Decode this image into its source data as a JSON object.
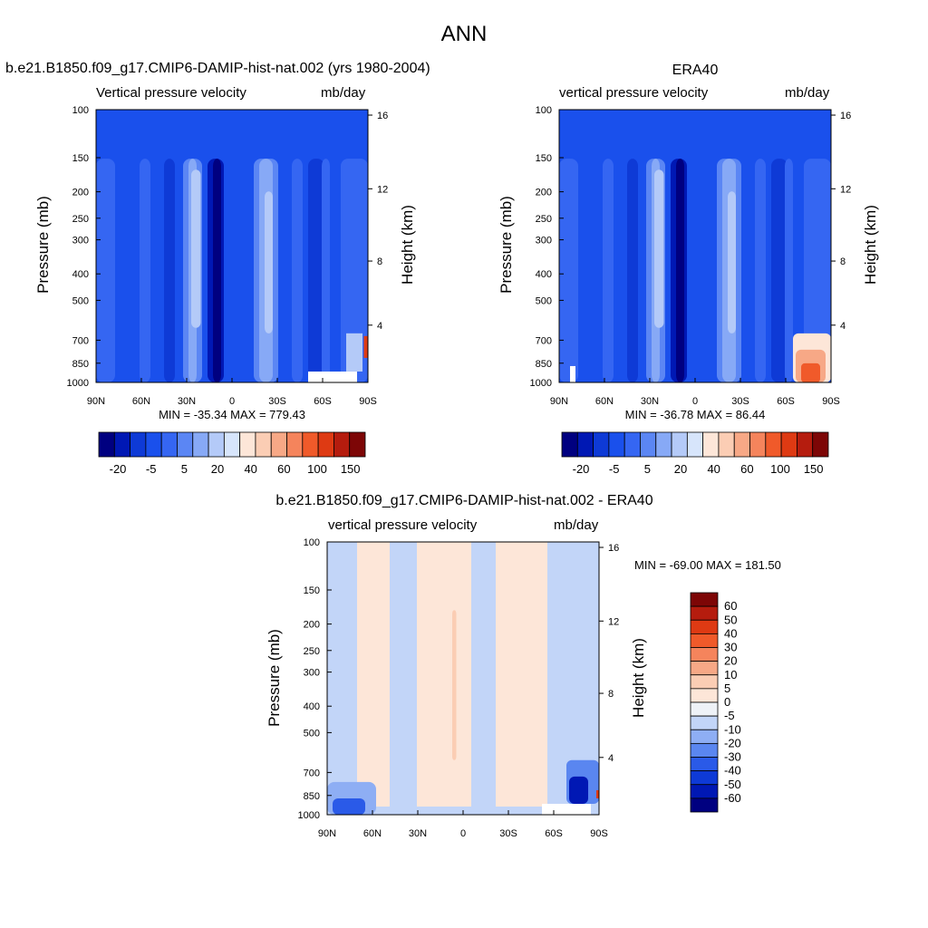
{
  "main_title": "ANN",
  "colors": {
    "blue_scale": [
      "#000080",
      "#0018b4",
      "#0e3ad6",
      "#1a50ec",
      "#3566f2",
      "#5b86f4",
      "#87a9f6",
      "#b4caf8",
      "#d7e5fb"
    ],
    "red_scale": [
      "#fde6d8",
      "#fbcdb4",
      "#f7a886",
      "#f5845c",
      "#f05a2a",
      "#de3a13",
      "#b51c0e",
      "#7d0606"
    ],
    "neutral": "#eef2f7",
    "diff_scale": [
      "#000080",
      "#0018b4",
      "#0e3ad6",
      "#2a5ae8",
      "#5a86f0",
      "#8eaef4",
      "#c2d5f8",
      "#eef2f7",
      "#fde6d8",
      "#fbcdb4",
      "#f7a886",
      "#f5845c",
      "#f05a2a",
      "#de3a13",
      "#b51c0e",
      "#7d0606"
    ]
  },
  "panels": [
    {
      "title": "b.e21.B1850.f09_g17.CMIP6-DAMIP-hist-nat.002 (yrs 1980-2004)",
      "left_label": "Vertical pressure velocity",
      "right_label": "mb/day",
      "min_max": "MIN = -35.34  MAX = 779.43"
    },
    {
      "title": "ERA40",
      "left_label": "vertical pressure velocity",
      "right_label": "mb/day",
      "min_max": "MIN = -36.78  MAX =  86.44"
    },
    {
      "title": "b.e21.B1850.f09_g17.CMIP6-DAMIP-hist-nat.002 - ERA40",
      "left_label": "vertical pressure velocity",
      "right_label": "mb/day",
      "min_max": "MIN = -69.00  MAX = 181.50"
    }
  ],
  "axes": {
    "ylabel": "Pressure (mb)",
    "ylabel_right": "Height (km)",
    "pressure_ticks": [
      "100",
      "150",
      "200",
      "250",
      "300",
      "400",
      "500",
      "700",
      "850",
      "1000"
    ],
    "height_ticks": [
      "16",
      "12",
      "8",
      "4"
    ],
    "lat_ticks": [
      "90N",
      "60N",
      "30N",
      "0",
      "30S",
      "60S",
      "90S"
    ]
  },
  "colorbar_labels": [
    "-20",
    "-5",
    "5",
    "20",
    "40",
    "60",
    "100",
    "150"
  ],
  "diff_colorbar_labels": [
    "60",
    "50",
    "40",
    "30",
    "20",
    "10",
    "5",
    "0",
    "-5",
    "-10",
    "-20",
    "-30",
    "-40",
    "-50",
    "-60"
  ],
  "chart_data": [
    {
      "type": "heatmap",
      "title": "b.e21.B1850.f09_g17.CMIP6-DAMIP-hist-nat.002 (yrs 1980-2004)",
      "xlabel": "",
      "ylabel": "Pressure (mb)",
      "ylabel_right": "Height (km)",
      "x_ticks": [
        "90N",
        "60N",
        "30N",
        "0",
        "30S",
        "60S",
        "90S"
      ],
      "y_ticks": [
        100,
        150,
        200,
        250,
        300,
        400,
        500,
        700,
        850,
        1000
      ],
      "y_scale": "log",
      "y_reversed": true,
      "units": "mb/day",
      "min": -35.34,
      "max": 779.43,
      "levels": [
        -20,
        -5,
        5,
        20,
        40,
        60,
        100,
        150
      ]
    },
    {
      "type": "heatmap",
      "title": "ERA40",
      "xlabel": "",
      "ylabel": "Pressure (mb)",
      "ylabel_right": "Height (km)",
      "x_ticks": [
        "90N",
        "60N",
        "30N",
        "0",
        "30S",
        "60S",
        "90S"
      ],
      "y_ticks": [
        100,
        150,
        200,
        250,
        300,
        400,
        500,
        700,
        850,
        1000
      ],
      "y_scale": "log",
      "y_reversed": true,
      "units": "mb/day",
      "min": -36.78,
      "max": 86.44,
      "levels": [
        -20,
        -5,
        5,
        20,
        40,
        60,
        100,
        150
      ]
    },
    {
      "type": "heatmap",
      "title": "b.e21.B1850.f09_g17.CMIP6-DAMIP-hist-nat.002 - ERA40",
      "xlabel": "",
      "ylabel": "Pressure (mb)",
      "ylabel_right": "Height (km)",
      "x_ticks": [
        "90N",
        "60N",
        "30N",
        "0",
        "30S",
        "60S",
        "90S"
      ],
      "y_ticks": [
        100,
        150,
        200,
        250,
        300,
        400,
        500,
        700,
        850,
        1000
      ],
      "y_scale": "log",
      "y_reversed": true,
      "units": "mb/day",
      "min": -69.0,
      "max": 181.5,
      "levels": [
        -60,
        -50,
        -40,
        -30,
        -20,
        -10,
        -5,
        0,
        5,
        10,
        20,
        30,
        40,
        50,
        60
      ]
    }
  ]
}
